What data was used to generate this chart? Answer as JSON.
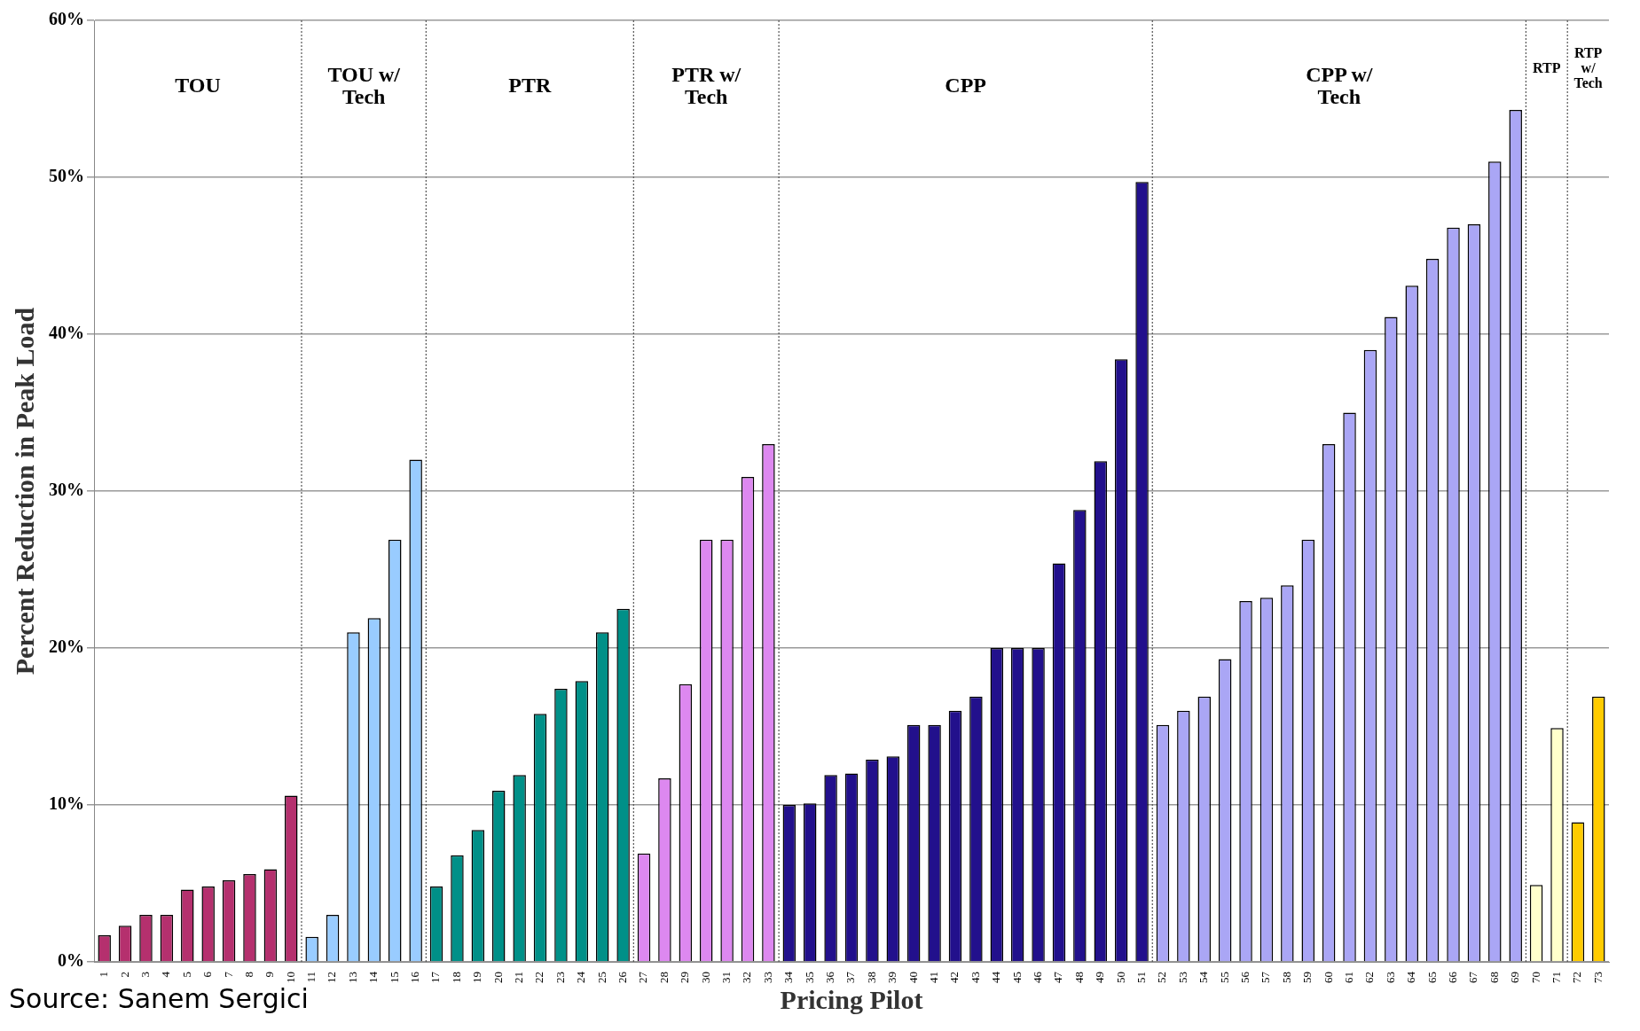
{
  "chart_data": {
    "type": "bar",
    "xlabel": "Pricing Pilot",
    "ylabel": "Percent Reduction in Peak Load",
    "categories": [
      "1",
      "2",
      "3",
      "4",
      "5",
      "6",
      "7",
      "8",
      "9",
      "10",
      "11",
      "12",
      "13",
      "14",
      "15",
      "16",
      "17",
      "18",
      "19",
      "20",
      "21",
      "22",
      "23",
      "24",
      "25",
      "26",
      "27",
      "28",
      "29",
      "30",
      "31",
      "32",
      "33",
      "34",
      "35",
      "36",
      "37",
      "38",
      "39",
      "40",
      "41",
      "42",
      "43",
      "44",
      "45",
      "46",
      "47",
      "48",
      "49",
      "50",
      "51",
      "52",
      "53",
      "54",
      "55",
      "56",
      "57",
      "58",
      "59",
      "60",
      "61",
      "62",
      "63",
      "64",
      "65",
      "66",
      "67",
      "68",
      "69",
      "70",
      "71",
      "72",
      "73"
    ],
    "values": [
      1.7,
      2.3,
      3.0,
      3.0,
      4.6,
      4.8,
      5.2,
      5.6,
      5.9,
      10.6,
      1.6,
      3.0,
      21.0,
      21.9,
      26.9,
      32.0,
      4.8,
      6.8,
      8.4,
      10.9,
      11.9,
      15.8,
      17.4,
      17.9,
      21.0,
      22.5,
      6.9,
      11.7,
      17.7,
      26.9,
      26.9,
      30.9,
      33.0,
      10.0,
      10.1,
      11.9,
      12.0,
      12.9,
      13.1,
      15.1,
      15.1,
      16.0,
      16.9,
      20.0,
      20.0,
      20.0,
      25.4,
      28.8,
      31.9,
      38.4,
      49.7,
      15.1,
      16.0,
      16.9,
      19.3,
      23.0,
      23.2,
      24.0,
      26.9,
      33.0,
      35.0,
      39.0,
      41.1,
      43.1,
      44.8,
      46.8,
      47.0,
      51.0,
      54.3,
      4.9,
      14.9,
      8.9,
      16.9
    ],
    "colors": [
      "#b5306e",
      "#b5306e",
      "#b5306e",
      "#b5306e",
      "#b5306e",
      "#b5306e",
      "#b5306e",
      "#b5306e",
      "#b5306e",
      "#b5306e",
      "#99ccff",
      "#99ccff",
      "#99ccff",
      "#99ccff",
      "#99ccff",
      "#99ccff",
      "#009088",
      "#009088",
      "#009088",
      "#009088",
      "#009088",
      "#009088",
      "#009088",
      "#009088",
      "#009088",
      "#009088",
      "#dd88f0",
      "#dd88f0",
      "#dd88f0",
      "#dd88f0",
      "#dd88f0",
      "#dd88f0",
      "#dd88f0",
      "#22108c",
      "#22108c",
      "#22108c",
      "#22108c",
      "#22108c",
      "#22108c",
      "#22108c",
      "#22108c",
      "#22108c",
      "#22108c",
      "#22108c",
      "#22108c",
      "#22108c",
      "#22108c",
      "#22108c",
      "#22108c",
      "#22108c",
      "#22108c",
      "#aaa6f5",
      "#aaa6f5",
      "#aaa6f5",
      "#aaa6f5",
      "#aaa6f5",
      "#aaa6f5",
      "#aaa6f5",
      "#aaa6f5",
      "#aaa6f5",
      "#aaa6f5",
      "#aaa6f5",
      "#aaa6f5",
      "#aaa6f5",
      "#aaa6f5",
      "#aaa6f5",
      "#aaa6f5",
      "#aaa6f5",
      "#aaa6f5",
      "#ffffcc",
      "#ffffcc",
      "#ffcc00",
      "#ffcc00"
    ],
    "ylim": [
      0,
      60
    ],
    "yticks": [
      {
        "value": 0,
        "label": "0%"
      },
      {
        "value": 10,
        "label": "10%"
      },
      {
        "value": 20,
        "label": "20%"
      },
      {
        "value": 30,
        "label": "30%"
      },
      {
        "value": 40,
        "label": "40%"
      },
      {
        "value": 50,
        "label": "50%"
      },
      {
        "value": 60,
        "label": "60%"
      }
    ],
    "grid": "y",
    "legend": false,
    "annotations": [
      "TOU",
      "TOU w/ Tech",
      "PTR",
      "PTR w/ Tech",
      "CPP",
      "CPP w/ Tech",
      "RTP",
      "RTP w/ Tech",
      "Source: Sanem Sergici"
    ]
  }
}
